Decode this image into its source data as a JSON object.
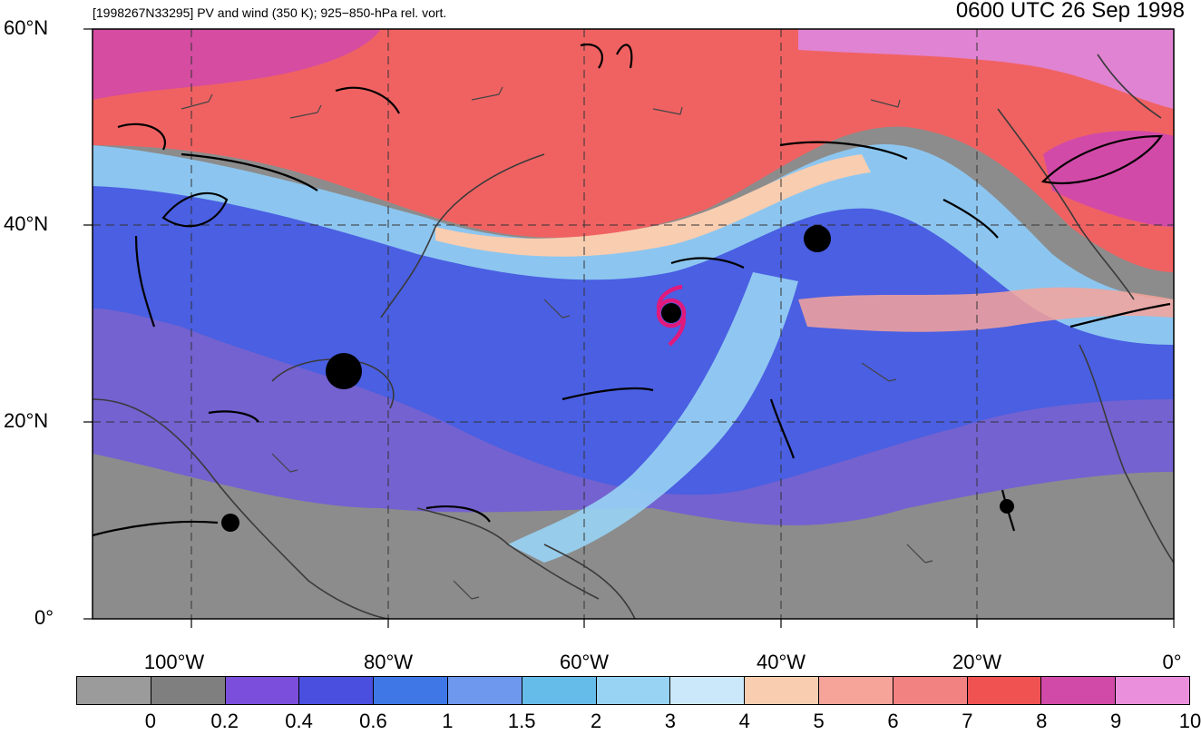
{
  "title": {
    "left": "[1998267N33295] PV and wind (350 K); 925−850-hPa rel. vort.",
    "right": "0600 UTC 26 Sep 1998"
  },
  "axes": {
    "lat_labels": [
      "60°N",
      "40°N",
      "20°N",
      "0°"
    ],
    "lon_labels": [
      "100°W",
      "80°W",
      "60°W",
      "40°W",
      "20°W",
      "0°"
    ]
  },
  "colorbar": {
    "colors": [
      "#9b9b9b",
      "#7f7f7f",
      "#7b4fdc",
      "#4a4fe0",
      "#3f77e6",
      "#6e97ee",
      "#66bce8",
      "#98d3f4",
      "#cbe8fb",
      "#f8cdb0",
      "#f6a39a",
      "#f28282",
      "#f05252",
      "#d24aa8",
      "#ea8fdb"
    ],
    "labels": [
      "0",
      "0.2",
      "0.4",
      "0.6",
      "1",
      "1.5",
      "2",
      "3",
      "4",
      "5",
      "6",
      "7",
      "8",
      "9",
      "10"
    ]
  },
  "storm": {
    "color": "#e0197d"
  }
}
